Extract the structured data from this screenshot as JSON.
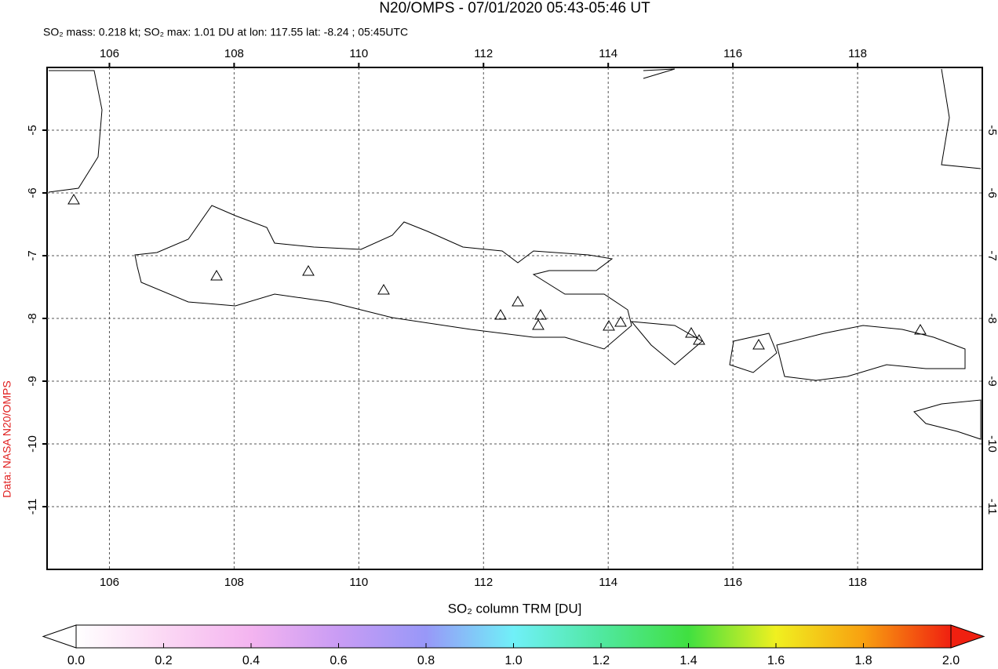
{
  "title": "N20/OMPS - 07/01/2020 05:43-05:46 UT",
  "subtitle": "SO₂ mass: 0.218 kt; SO₂ max: 1.01 DU at lon: 117.55 lat: -8.24 ; 05:45UTC",
  "credit": "Data: NASA N20/OMPS",
  "map": {
    "lonlim": [
      105,
      120
    ],
    "latlim": [
      -12,
      -4
    ],
    "lonticks": [
      106,
      108,
      110,
      112,
      114,
      116,
      118
    ],
    "latticks": [
      -5,
      -6,
      -7,
      -8,
      -9,
      -10,
      -11
    ]
  },
  "colorbar": {
    "label": "SO₂ column TRM [DU]",
    "lim": [
      0,
      2
    ],
    "ticks": [
      {
        "value": 0,
        "label": "0.0"
      },
      {
        "value": 0.2,
        "label": "0.2"
      },
      {
        "value": 0.4,
        "label": "0.4"
      },
      {
        "value": 0.6,
        "label": "0.6"
      },
      {
        "value": 0.8,
        "label": "0.8"
      },
      {
        "value": 1,
        "label": "1.0"
      },
      {
        "value": 1.2,
        "label": "1.2"
      },
      {
        "value": 1.4,
        "label": "1.4"
      },
      {
        "value": 1.6,
        "label": "1.6"
      },
      {
        "value": 1.8,
        "label": "1.8"
      },
      {
        "value": 2,
        "label": "2.0"
      }
    ]
  }
}
